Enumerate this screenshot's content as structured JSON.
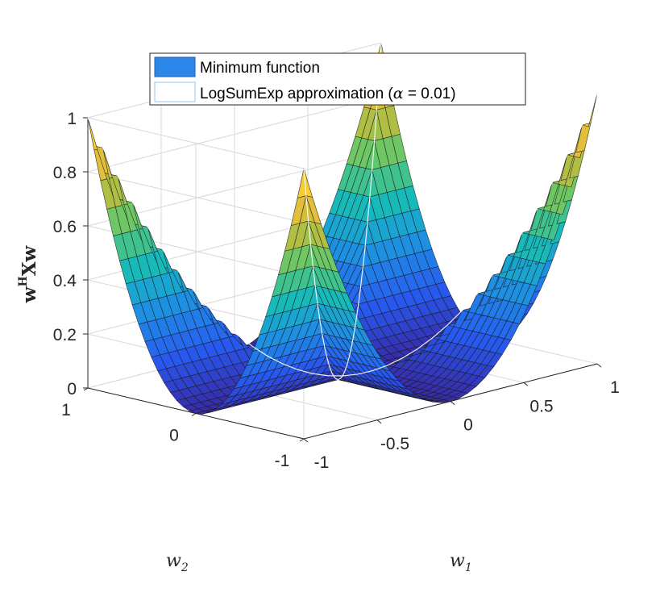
{
  "chart_data": {
    "type": "surface3d",
    "function": "min(w1^2, w2^2) over a 35 x 35 grid",
    "x": {
      "label": "w",
      "label_sub": "1",
      "range": [
        -1,
        1
      ],
      "ticks": [
        -1,
        -0.5,
        0,
        0.5,
        1
      ]
    },
    "y": {
      "label": "w",
      "label_sub": "2",
      "range": [
        -1,
        1
      ],
      "ticks": [
        -1,
        0,
        1
      ]
    },
    "z": {
      "label": "w",
      "label_sup": "H",
      "label_mid": "Xw",
      "range": [
        0,
        1
      ],
      "ticks": [
        0,
        0.2,
        0.4,
        0.6,
        0.8,
        1
      ]
    },
    "series": [
      {
        "name": "Minimum function",
        "style": "solid surface, parula colormap"
      },
      {
        "name": "LogSumExp approximation",
        "alpha": 0.01,
        "style": "white edge mesh"
      }
    ],
    "legend": {
      "position": "top-center",
      "entries": [
        {
          "text": "Minimum function"
        },
        {
          "text_before": "LogSumExp approximation (",
          "symbol": "α",
          "text_after": " = 0.01)"
        }
      ]
    },
    "grid": true,
    "colors": {
      "surface_blue": "#3d6cf0",
      "surface_yellow": "#f0bf3a",
      "edge": "#000000",
      "mesh": "#ffffff",
      "legend_patch": "#2d87e8",
      "legend_patch_edge": "#9cc3e8"
    }
  }
}
